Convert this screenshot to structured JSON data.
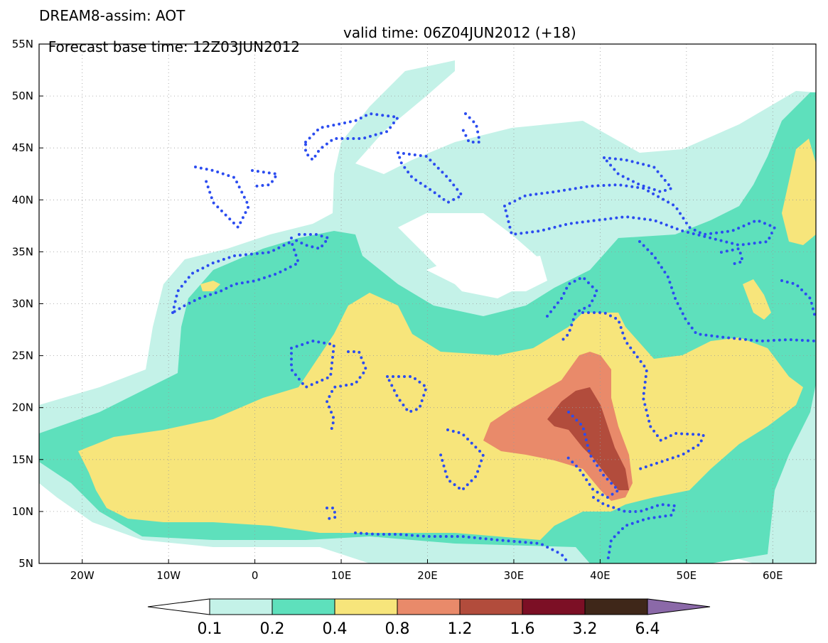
{
  "header": {
    "title": "DREAM8-assim: AOT",
    "base_time": "Forecast base time: 12Z03JUN2012",
    "valid_time": "valid time: 06Z04JUN2012 (+18)"
  },
  "map": {
    "lon_range": [
      -25,
      65
    ],
    "lat_range": [
      5,
      55
    ],
    "lat_labels": [
      "55N",
      "50N",
      "45N",
      "40N",
      "35N",
      "30N",
      "25N",
      "20N",
      "15N",
      "10N",
      "5N"
    ],
    "lon_labels": [
      "20W",
      "10W",
      "0",
      "10E",
      "20E",
      "30E",
      "40E",
      "50E",
      "60E"
    ],
    "gridlines": true,
    "contour_style": "dotted blue lines"
  },
  "colorbar": {
    "levels": [
      "0.1",
      "0.2",
      "0.4",
      "0.8",
      "1.2",
      "1.6",
      "3.2",
      "6.4"
    ],
    "colors": [
      "#ffffff",
      "#c4f2e8",
      "#5ee0bc",
      "#f7e57b",
      "#e98a6a",
      "#b24c3c",
      "#7c0f25",
      "#3f2719",
      "#8b69a8"
    ]
  },
  "colors": {
    "level_0_1": "#c4f2e8",
    "level_0_2": "#5ee0bc",
    "level_0_4": "#f7e57b",
    "level_0_8": "#e98a6a",
    "level_1_2": "#b24c3c",
    "contour": "#2b4cf0"
  }
}
